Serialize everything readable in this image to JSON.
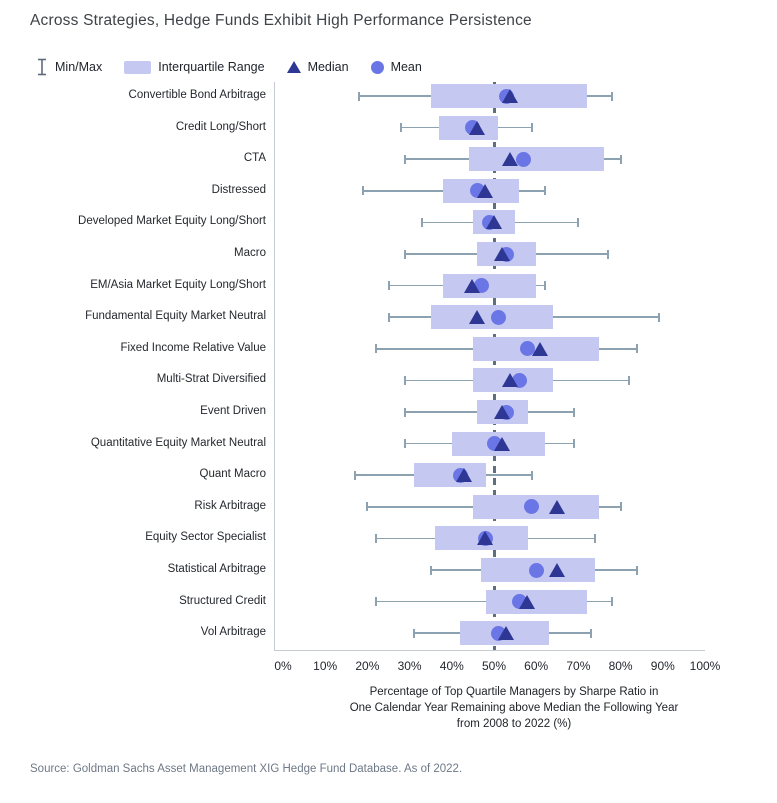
{
  "title": "Across Strategies, Hedge Funds Exhibit High Performance Persistence",
  "legend": {
    "minmax_label": "Min/Max",
    "iqr_label": "Interquartile Range",
    "median_label": "Median",
    "mean_label": "Mean"
  },
  "colors": {
    "iqr_box": "#c5c9f2",
    "median_marker": "#2e3794",
    "mean_marker": "#6b76e6",
    "whisker": "#8da2b1",
    "reference_line": "#5f6f7d",
    "axis_spine": "#c6cbd1",
    "title_text": "#3e4349",
    "label_text": "#24282e",
    "source_text": "#6e7987"
  },
  "source": "Source: Goldman Sachs Asset Management XIG Hedge Fund Database. As of 2022.",
  "chart_data": {
    "type": "box",
    "title": "Across Strategies, Hedge Funds Exhibit High Performance Persistence",
    "xlabel_lines": [
      "Percentage of Top Quartile Managers by Sharpe Ratio in",
      "One Calendar Year Remaining above Median the Following Year",
      "from 2008 to 2022 (%)"
    ],
    "x_ticks": [
      "0%",
      "10%",
      "20%",
      "30%",
      "40%",
      "50%",
      "60%",
      "70%",
      "80%",
      "90%",
      "100%"
    ],
    "xlim": [
      0,
      100
    ],
    "reference_line_pct": 50,
    "grid": false,
    "legend_position": "top-left",
    "units": "percent",
    "series": [
      {
        "name": "Convertible Bond Arbitrage",
        "min": 18,
        "q1": 35,
        "median": 54,
        "mean": 53,
        "q3": 72,
        "max": 78
      },
      {
        "name": "Credit Long/Short",
        "min": 28,
        "q1": 37,
        "median": 46,
        "mean": 45,
        "q3": 51,
        "max": 59
      },
      {
        "name": "CTA",
        "min": 29,
        "q1": 44,
        "median": 54,
        "mean": 57,
        "q3": 76,
        "max": 80
      },
      {
        "name": "Distressed",
        "min": 19,
        "q1": 38,
        "median": 48,
        "mean": 46,
        "q3": 56,
        "max": 62
      },
      {
        "name": "Developed Market Equity Long/Short",
        "min": 33,
        "q1": 45,
        "median": 50,
        "mean": 49,
        "q3": 55,
        "max": 70
      },
      {
        "name": "Macro",
        "min": 29,
        "q1": 46,
        "median": 52,
        "mean": 53,
        "q3": 60,
        "max": 77
      },
      {
        "name": "EM/Asia Market Equity Long/Short",
        "min": 25,
        "q1": 38,
        "median": 45,
        "mean": 47,
        "q3": 60,
        "max": 62
      },
      {
        "name": "Fundamental Equity Market Neutral",
        "min": 25,
        "q1": 35,
        "median": 46,
        "mean": 51,
        "q3": 64,
        "max": 89
      },
      {
        "name": "Fixed Income Relative Value",
        "min": 22,
        "q1": 45,
        "median": 61,
        "mean": 58,
        "q3": 75,
        "max": 84
      },
      {
        "name": "Multi-Strat Diversified",
        "min": 29,
        "q1": 45,
        "median": 54,
        "mean": 56,
        "q3": 64,
        "max": 82
      },
      {
        "name": "Event Driven",
        "min": 29,
        "q1": 46,
        "median": 52,
        "mean": 53,
        "q3": 58,
        "max": 69
      },
      {
        "name": "Quantitative Equity Market Neutral",
        "min": 29,
        "q1": 40,
        "median": 52,
        "mean": 50,
        "q3": 62,
        "max": 69
      },
      {
        "name": "Quant Macro",
        "min": 17,
        "q1": 31,
        "median": 43,
        "mean": 42,
        "q3": 48,
        "max": 59
      },
      {
        "name": "Risk Arbitrage",
        "min": 20,
        "q1": 45,
        "median": 65,
        "mean": 59,
        "q3": 75,
        "max": 80
      },
      {
        "name": "Equity Sector Specialist",
        "min": 22,
        "q1": 36,
        "median": 48,
        "mean": 48,
        "q3": 58,
        "max": 74
      },
      {
        "name": "Statistical Arbitrage",
        "min": 35,
        "q1": 47,
        "median": 65,
        "mean": 60,
        "q3": 74,
        "max": 84
      },
      {
        "name": "Structured Credit",
        "min": 22,
        "q1": 48,
        "median": 58,
        "mean": 56,
        "q3": 72,
        "max": 78
      },
      {
        "name": "Vol Arbitrage",
        "min": 31,
        "q1": 42,
        "median": 53,
        "mean": 51,
        "q3": 63,
        "max": 73
      }
    ]
  }
}
